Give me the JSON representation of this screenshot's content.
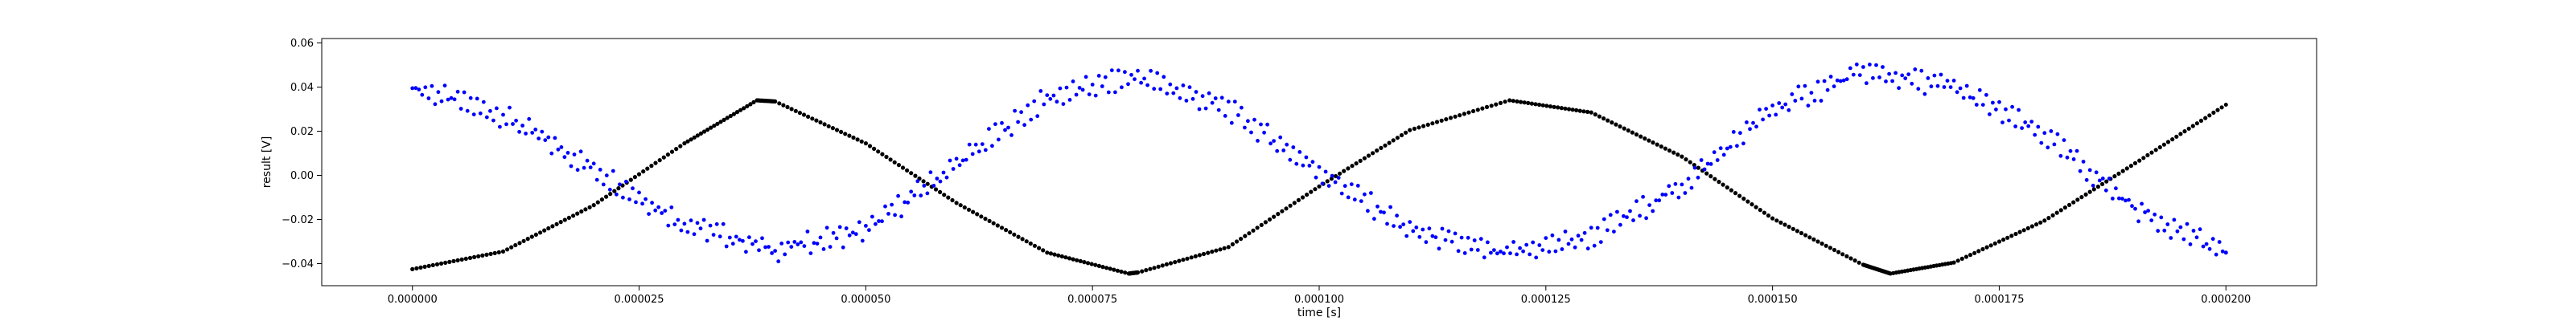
{
  "chart_data": {
    "type": "scatter",
    "title": "",
    "xlabel": "time [s]",
    "ylabel": "result [V]",
    "xlim": [
      -1e-05,
      0.00021
    ],
    "ylim": [
      -0.05,
      0.062
    ],
    "x_ticks": [
      0.0,
      2.5e-05,
      5e-05,
      7.5e-05,
      0.0001,
      0.000125,
      0.00015,
      0.000175,
      0.0002
    ],
    "x_tick_labels": [
      "0.000000",
      "0.000025",
      "0.000050",
      "0.000075",
      "0.000100",
      "0.000125",
      "0.000150",
      "0.000175",
      "0.000200"
    ],
    "y_ticks": [
      -0.04,
      -0.02,
      0.0,
      0.02,
      0.04,
      0.06
    ],
    "y_tick_labels": [
      "−0.04",
      "−0.02",
      "0.00",
      "0.02",
      "0.04",
      "0.06"
    ],
    "grid": false,
    "legend": "none",
    "series": [
      {
        "color": "#000000",
        "marker": "dot",
        "x": [
          0.0,
          1e-05,
          2e-05,
          3e-05,
          3.8e-05,
          4e-05,
          5e-05,
          6e-05,
          7e-05,
          7.9e-05,
          8e-05,
          9e-05,
          0.0001,
          0.00011,
          0.000121,
          0.00013,
          0.00014,
          0.00015,
          0.00016,
          0.000163,
          0.00017,
          0.00018,
          0.00019,
          0.0002
        ],
        "values": [
          -0.0425,
          -0.0345,
          -0.0135,
          0.0145,
          0.034,
          0.0335,
          0.0145,
          -0.0125,
          -0.035,
          -0.0445,
          -0.044,
          -0.0325,
          -0.005,
          0.0205,
          0.034,
          0.0285,
          0.0085,
          -0.0195,
          -0.0405,
          -0.0445,
          -0.0395,
          -0.0205,
          0.0055,
          0.032
        ]
      },
      {
        "color": "#0000ff",
        "marker": "dot",
        "x": [
          0.0,
          1e-05,
          2e-05,
          3e-05,
          4e-05,
          5e-05,
          6e-05,
          7e-05,
          8e-05,
          9e-05,
          0.0001,
          0.00011,
          0.00012,
          0.00013,
          0.00014,
          0.00015,
          0.00016,
          0.00017,
          0.00018,
          0.00019,
          0.0002
        ],
        "values": [
          0.04,
          0.027,
          0.003,
          -0.022,
          -0.034,
          -0.025,
          0.005,
          0.035,
          0.045,
          0.03,
          0.002,
          -0.025,
          -0.036,
          -0.028,
          -0.005,
          0.03,
          0.047,
          0.04,
          0.018,
          -0.015,
          -0.035
        ]
      }
    ]
  }
}
